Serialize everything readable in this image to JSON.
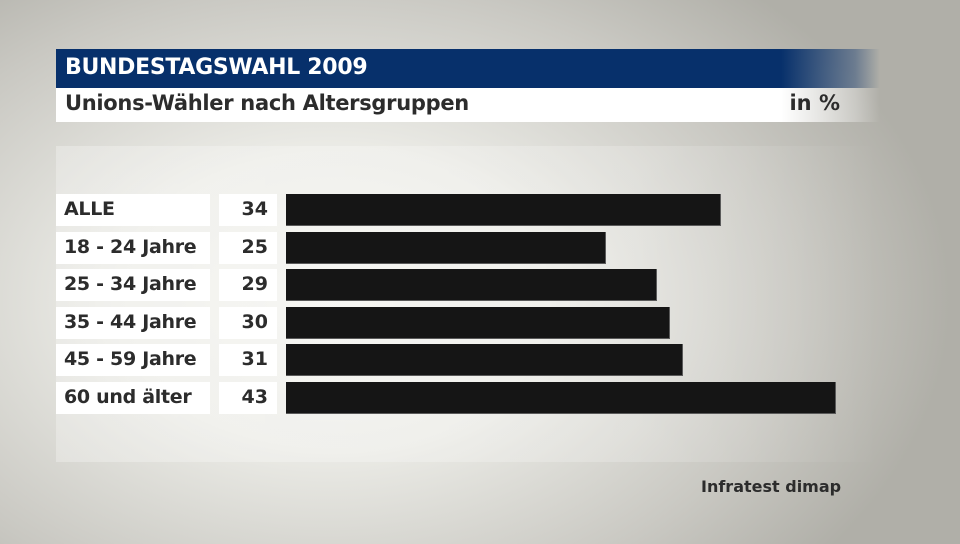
{
  "header": {
    "title": "BUNDESTAGSWAHL 2009",
    "subtitle": "Unions-Wähler nach Altersgruppen",
    "unit": "in %",
    "brand_color": "#07306b"
  },
  "rows": [
    {
      "label": "ALLE",
      "value": "34"
    },
    {
      "label": "18 - 24 Jahre",
      "value": "25"
    },
    {
      "label": "25 - 34 Jahre",
      "value": "29"
    },
    {
      "label": "35 - 44 Jahre",
      "value": "30"
    },
    {
      "label": "45 - 59 Jahre",
      "value": "31"
    },
    {
      "label": "60 und älter",
      "value": "43"
    }
  ],
  "source": "Infratest dimap",
  "chart_data": {
    "type": "bar",
    "orientation": "horizontal",
    "title": "BUNDESTAGSWAHL 2009",
    "subtitle": "Unions-Wähler nach Altersgruppen",
    "unit": "in %",
    "categories": [
      "ALLE",
      "18 - 24 Jahre",
      "25 - 34 Jahre",
      "35 - 44 Jahre",
      "45 - 59 Jahre",
      "60 und älter"
    ],
    "values": [
      34,
      25,
      29,
      30,
      31,
      43
    ],
    "bar_color": "#151515",
    "xlabel": "",
    "ylabel": "",
    "xlim": [
      0,
      43
    ],
    "grid": false,
    "legend": null,
    "source": "Infratest dimap"
  }
}
